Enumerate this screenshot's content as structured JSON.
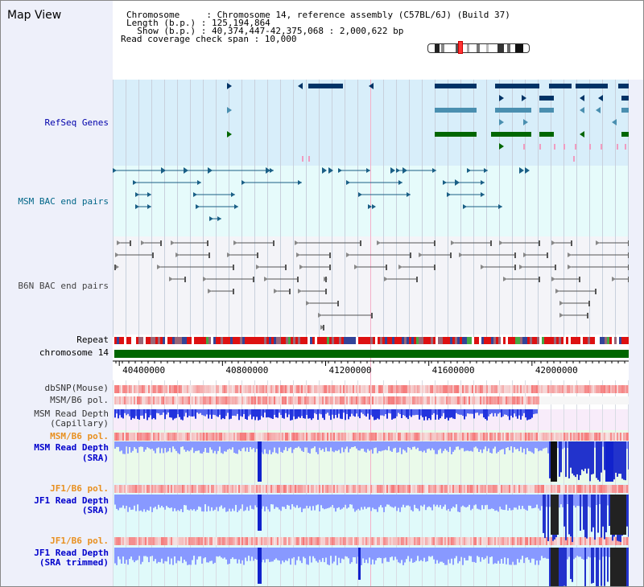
{
  "title": "Map View",
  "info": {
    "chromosome_line": "Chromosome     : Chromosome 14, reference assembly (C57BL/6J) (Build 37)",
    "length_line": "Length (b.p.) : 125,194,864",
    "show_line": "  Show (b.p.) : 40,374,447-42,375,068 : 2,000,622 bp",
    "coverage_line": "Read coverage check span : 10,000"
  },
  "tracks": [
    {
      "key": "refseq",
      "label": "RefSeq Genes",
      "color": "#0000aa",
      "bold": false
    },
    {
      "key": "msm_bac",
      "label": "MSM BAC end pairs",
      "color": "#006688",
      "bold": false
    },
    {
      "key": "b6n_bac",
      "label": "B6N BAC end pairs",
      "color": "#444444",
      "bold": false
    },
    {
      "key": "repeat",
      "label": "Repeat",
      "color": "#000000",
      "bold": false
    },
    {
      "key": "chrom",
      "label": "chromosome 14",
      "color": "#000000",
      "bold": false
    },
    {
      "key": "dbsnp",
      "label": "dbSNP(Mouse)",
      "color": "#333333",
      "bold": false
    },
    {
      "key": "msm_pol",
      "label": "MSM/B6 pol.",
      "color": "#333333",
      "bold": false
    },
    {
      "key": "msm_cap_1",
      "label": "MSM Read Depth",
      "color": "#333333",
      "bold": false
    },
    {
      "key": "msm_cap_2",
      "label": "(Capillary)",
      "color": "#333333",
      "bold": false
    },
    {
      "key": "msm_pol2",
      "label": "MSM/B6 pol.",
      "color": "#e89020",
      "bold": true
    },
    {
      "key": "msm_sra_1",
      "label": "MSM Read Depth",
      "color": "#0000cc",
      "bold": true
    },
    {
      "key": "msm_sra_2",
      "label": "(SRA)",
      "color": "#0000cc",
      "bold": true
    },
    {
      "key": "jf1_pol",
      "label": "JF1/B6 pol.",
      "color": "#e89020",
      "bold": true
    },
    {
      "key": "jf1_sra_1",
      "label": "JF1 Read Depth",
      "color": "#0000cc",
      "bold": true
    },
    {
      "key": "jf1_sra_2",
      "label": "(SRA)",
      "color": "#0000cc",
      "bold": true
    },
    {
      "key": "jf1_pol2",
      "label": "JF1/B6 pol.",
      "color": "#e89020",
      "bold": true
    },
    {
      "key": "jf1_trim_1",
      "label": "JF1 Read Depth",
      "color": "#0000cc",
      "bold": true
    },
    {
      "key": "jf1_trim_2",
      "label": "(SRA trimmed)",
      "color": "#0000cc",
      "bold": true
    }
  ],
  "axis": {
    "start_bp": 40374447,
    "end_bp": 42375068,
    "ticks": [
      "40400000",
      "40800000",
      "41200000",
      "41600000",
      "42000000"
    ],
    "tick_values": [
      40400000,
      40800000,
      41200000,
      41600000,
      42000000
    ]
  },
  "colors": {
    "refseq_dark": "#003366",
    "refseq_mid": "#4a8fb0",
    "refseq_green": "#006600",
    "msm_bac": "#1a5f86",
    "b6n_bac": "#555555",
    "chrom_green": "#006600",
    "depth_blue": "#3344ee",
    "depth_light": "#8899ff",
    "pol_red": "#ee2222"
  }
}
